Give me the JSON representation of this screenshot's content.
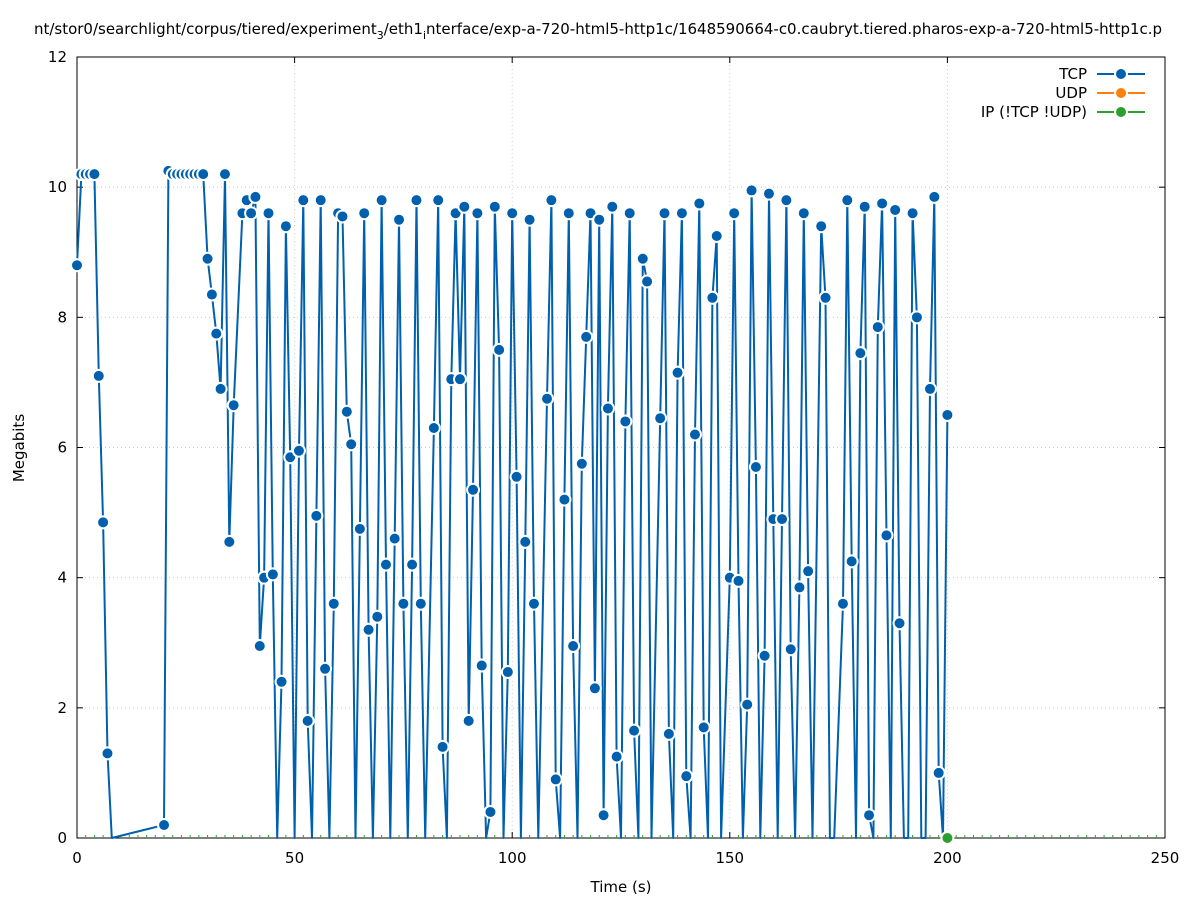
{
  "chart_data": {
    "type": "line",
    "title": "nt/stor0/searchlight/corpus/tiered/experiment",
    "title_sub": "3",
    "title_mid": "/eth1",
    "title_sub2": "i",
    "title_end": "nterface/exp-a-720-html5-http1c/1648590664-c0.caubryt.tiered.pharos-exp-a-720-html5-http1c.p",
    "xlabel": "Time (s)",
    "ylabel": "Megabits",
    "xlim": [
      0,
      250
    ],
    "ylim": [
      0,
      12
    ],
    "xticks": [
      "0",
      "50",
      "100",
      "150",
      "200",
      "250"
    ],
    "yticks": [
      "0",
      "2",
      "4",
      "6",
      "8",
      "10",
      "12"
    ],
    "grid": true,
    "legend_position": "top-right",
    "series": [
      {
        "name": "TCP",
        "color": "#0060ad",
        "points": [
          [
            0,
            8.8
          ],
          [
            1,
            10.2
          ],
          [
            2,
            10.2
          ],
          [
            3,
            10.2
          ],
          [
            4,
            10.2
          ],
          [
            5,
            7.1
          ],
          [
            6,
            4.85
          ],
          [
            7,
            1.3
          ],
          [
            8,
            0
          ],
          [
            20,
            0.2
          ],
          [
            21,
            10.25
          ],
          [
            22,
            10.2
          ],
          [
            23,
            10.2
          ],
          [
            24,
            10.2
          ],
          [
            25,
            10.2
          ],
          [
            26,
            10.2
          ],
          [
            27,
            10.2
          ],
          [
            28,
            10.2
          ],
          [
            29,
            10.2
          ],
          [
            30,
            8.9
          ],
          [
            31,
            8.35
          ],
          [
            32,
            7.75
          ],
          [
            33,
            6.9
          ],
          [
            34,
            10.2
          ],
          [
            35,
            4.55
          ],
          [
            36,
            6.65
          ],
          [
            38,
            9.6
          ],
          [
            39,
            9.8
          ],
          [
            40,
            9.6
          ],
          [
            41,
            9.85
          ],
          [
            42,
            2.95
          ],
          [
            43,
            4.0
          ],
          [
            44,
            9.6
          ],
          [
            45,
            4.05
          ],
          [
            46,
            0
          ],
          [
            47,
            2.4
          ],
          [
            48,
            9.4
          ],
          [
            49,
            5.85
          ],
          [
            50,
            0
          ],
          [
            51,
            5.95
          ],
          [
            52,
            9.8
          ],
          [
            53,
            1.8
          ],
          [
            54,
            0
          ],
          [
            55,
            4.95
          ],
          [
            56,
            9.8
          ],
          [
            57,
            2.6
          ],
          [
            58,
            0
          ],
          [
            59,
            3.6
          ],
          [
            60,
            9.6
          ],
          [
            61,
            9.55
          ],
          [
            62,
            6.55
          ],
          [
            63,
            6.05
          ],
          [
            64,
            0
          ],
          [
            65,
            4.75
          ],
          [
            66,
            9.6
          ],
          [
            67,
            3.2
          ],
          [
            68,
            0
          ],
          [
            69,
            3.4
          ],
          [
            70,
            9.8
          ],
          [
            71,
            4.2
          ],
          [
            72,
            0
          ],
          [
            73,
            4.6
          ],
          [
            74,
            9.5
          ],
          [
            75,
            3.6
          ],
          [
            76,
            0
          ],
          [
            77,
            4.2
          ],
          [
            78,
            9.8
          ],
          [
            79,
            3.6
          ],
          [
            80,
            0
          ],
          [
            82,
            6.3
          ],
          [
            83,
            9.8
          ],
          [
            84,
            1.4
          ],
          [
            85,
            0
          ],
          [
            86,
            7.05
          ],
          [
            87,
            9.6
          ],
          [
            88,
            7.05
          ],
          [
            89,
            9.7
          ],
          [
            90,
            1.8
          ],
          [
            91,
            5.35
          ],
          [
            92,
            9.6
          ],
          [
            93,
            2.65
          ],
          [
            94,
            0
          ],
          [
            95,
            0.4
          ],
          [
            96,
            9.7
          ],
          [
            97,
            7.5
          ],
          [
            98,
            0
          ],
          [
            99,
            2.55
          ],
          [
            100,
            9.6
          ],
          [
            101,
            5.55
          ],
          [
            102,
            0
          ],
          [
            103,
            4.55
          ],
          [
            104,
            9.5
          ],
          [
            105,
            3.6
          ],
          [
            106,
            0
          ],
          [
            108,
            6.75
          ],
          [
            109,
            9.8
          ],
          [
            110,
            0.9
          ],
          [
            111,
            0
          ],
          [
            112,
            5.2
          ],
          [
            113,
            9.6
          ],
          [
            114,
            2.95
          ],
          [
            115,
            0
          ],
          [
            116,
            5.75
          ],
          [
            117,
            7.7
          ],
          [
            118,
            9.6
          ],
          [
            119,
            2.3
          ],
          [
            120,
            9.5
          ],
          [
            121,
            0.35
          ],
          [
            122,
            6.6
          ],
          [
            123,
            9.7
          ],
          [
            124,
            1.25
          ],
          [
            125,
            0
          ],
          [
            126,
            6.4
          ],
          [
            127,
            9.6
          ],
          [
            128,
            1.65
          ],
          [
            129,
            0
          ],
          [
            130,
            8.9
          ],
          [
            131,
            8.55
          ],
          [
            132,
            0
          ],
          [
            134,
            6.45
          ],
          [
            135,
            9.6
          ],
          [
            136,
            1.6
          ],
          [
            137,
            0
          ],
          [
            138,
            7.15
          ],
          [
            139,
            9.6
          ],
          [
            140,
            0.95
          ],
          [
            141,
            0
          ],
          [
            142,
            6.2
          ],
          [
            143,
            9.75
          ],
          [
            144,
            1.7
          ],
          [
            145,
            0
          ],
          [
            146,
            8.3
          ],
          [
            147,
            9.25
          ],
          [
            148,
            0
          ],
          [
            150,
            4.0
          ],
          [
            151,
            9.6
          ],
          [
            152,
            3.95
          ],
          [
            153,
            0
          ],
          [
            154,
            2.05
          ],
          [
            155,
            9.95
          ],
          [
            156,
            5.7
          ],
          [
            157,
            0
          ],
          [
            158,
            2.8
          ],
          [
            159,
            9.9
          ],
          [
            160,
            4.9
          ],
          [
            161,
            0
          ],
          [
            162,
            4.9
          ],
          [
            163,
            9.8
          ],
          [
            164,
            2.9
          ],
          [
            165,
            0
          ],
          [
            166,
            3.85
          ],
          [
            167,
            9.6
          ],
          [
            168,
            4.1
          ],
          [
            169,
            0
          ],
          [
            171,
            9.4
          ],
          [
            172,
            8.3
          ],
          [
            173,
            0
          ],
          [
            174,
            0
          ],
          [
            176,
            3.6
          ],
          [
            177,
            9.8
          ],
          [
            178,
            4.25
          ],
          [
            179,
            0
          ],
          [
            180,
            7.45
          ],
          [
            181,
            9.7
          ],
          [
            182,
            0.35
          ],
          [
            183,
            0
          ],
          [
            184,
            7.85
          ],
          [
            185,
            9.75
          ],
          [
            186,
            4.65
          ],
          [
            187,
            0
          ],
          [
            188,
            9.65
          ],
          [
            189,
            3.3
          ],
          [
            190,
            0
          ],
          [
            191,
            0
          ],
          [
            192,
            9.6
          ],
          [
            193,
            8.0
          ],
          [
            194,
            0
          ],
          [
            195,
            0
          ],
          [
            196,
            6.9
          ],
          [
            197,
            9.85
          ],
          [
            198,
            1.0
          ],
          [
            199,
            0
          ],
          [
            200,
            6.5
          ]
        ]
      },
      {
        "name": "UDP",
        "color": "#ff7f0e",
        "points": []
      },
      {
        "name": "IP (!TCP  !UDP)",
        "color": "#2ca02c",
        "points": [
          [
            200,
            0
          ]
        ]
      }
    ]
  }
}
